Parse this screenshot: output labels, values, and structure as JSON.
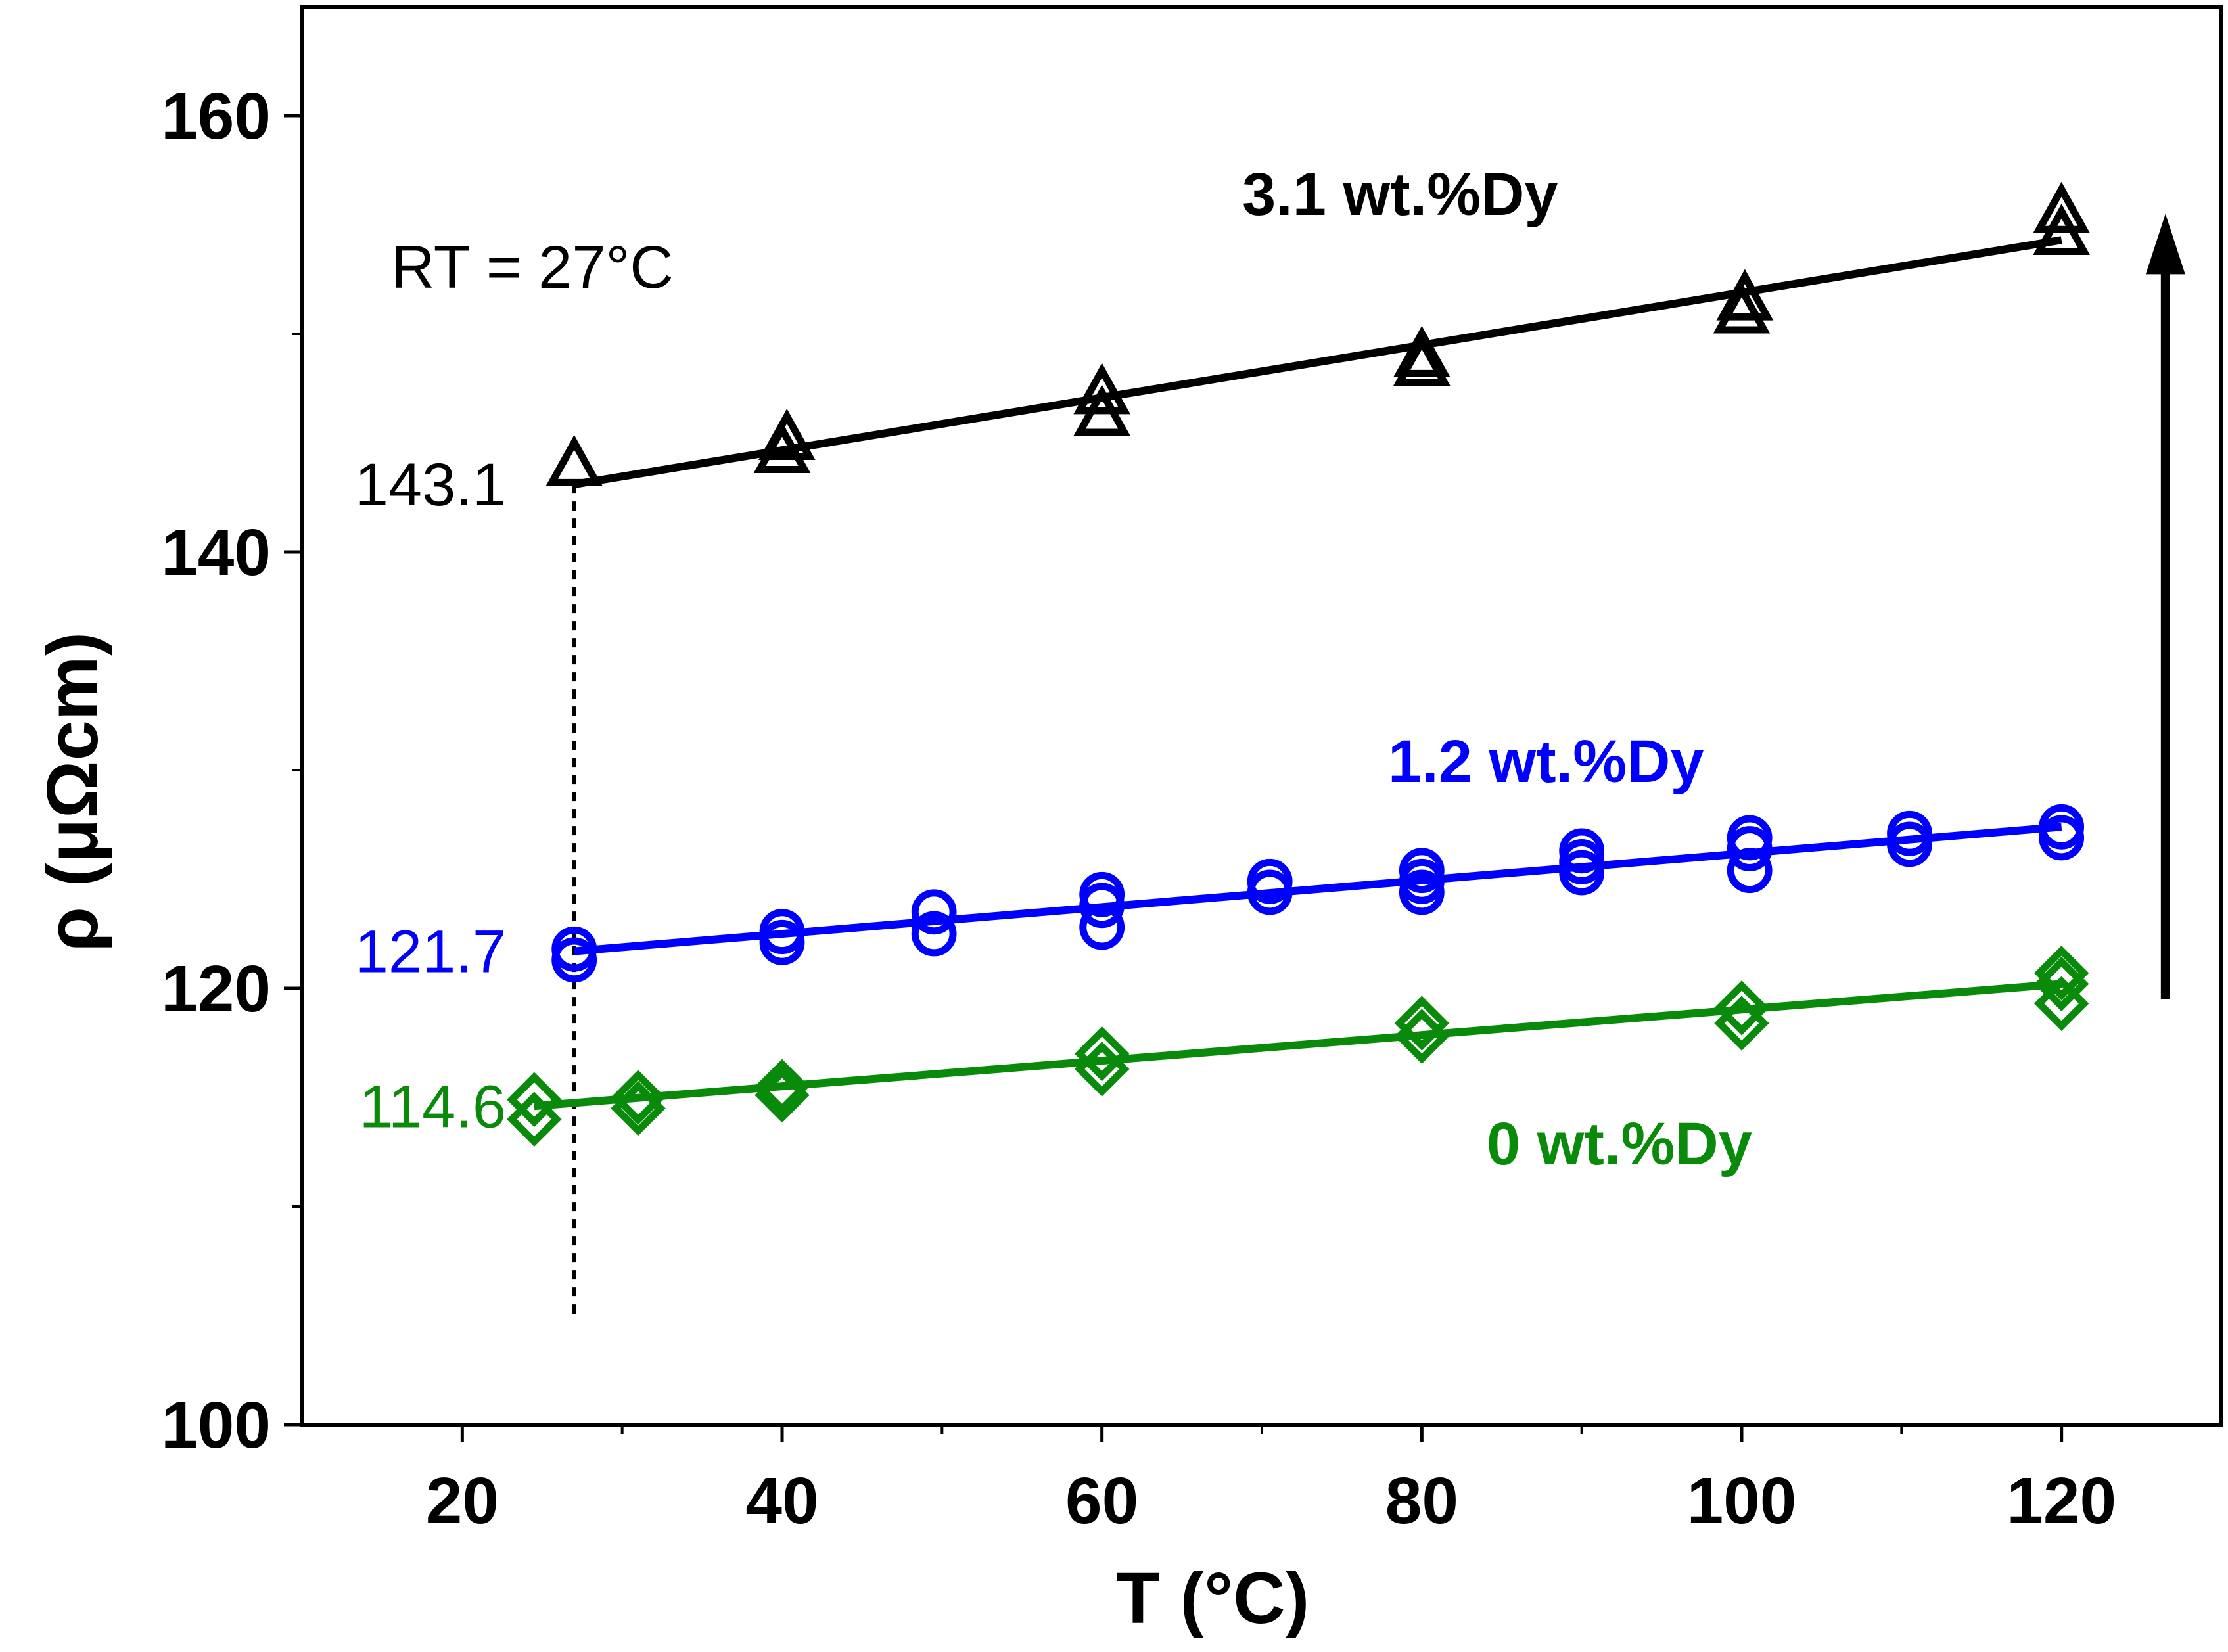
{
  "chart_data": {
    "type": "scatter",
    "xlabel": "T (°C)",
    "ylabel": "ρ (μΩcm)",
    "xlim": [
      10,
      130
    ],
    "ylim": [
      100,
      165
    ],
    "xticks": [
      20,
      40,
      60,
      80,
      100,
      120
    ],
    "xminor": [
      30,
      50,
      70,
      90,
      110
    ],
    "yticks": [
      100,
      120,
      140,
      160
    ],
    "yminor": [
      110,
      130,
      150
    ],
    "grid": false,
    "annotations": {
      "rt_text": "RT = 27°C",
      "rt_x": 27,
      "rt_line_ylim": [
        105,
        143.1
      ],
      "value_labels": [
        {
          "text": "143.1",
          "y": 143.1,
          "color": "#000000"
        },
        {
          "text": "121.7",
          "y": 121.7,
          "color": "#0000ff"
        },
        {
          "text": "114.6",
          "y": 114.6,
          "color": "#0a8a0a"
        }
      ],
      "arrow": {
        "x": 126.5,
        "y_from": 119.5,
        "y_to": 155.5
      }
    },
    "series": [
      {
        "name": "3.1 wt.%Dy",
        "color": "#000000",
        "marker": "triangle",
        "fit": {
          "x": [
            27,
            120
          ],
          "y": [
            143.1,
            154.3
          ]
        },
        "points": [
          {
            "x": 27,
            "y": 144.0
          },
          {
            "x": 40,
            "y": 144.6
          },
          {
            "x": 40.3,
            "y": 145.2
          },
          {
            "x": 60,
            "y": 146.3
          },
          {
            "x": 60,
            "y": 147.3
          },
          {
            "x": 80,
            "y": 148.6
          },
          {
            "x": 80,
            "y": 149.0
          },
          {
            "x": 100,
            "y": 151.0
          },
          {
            "x": 100.2,
            "y": 151.6
          },
          {
            "x": 120,
            "y": 154.6
          },
          {
            "x": 120,
            "y": 155.6
          }
        ]
      },
      {
        "name": "1.2 wt.%Dy",
        "color": "#0000ff",
        "marker": "circle",
        "fit": {
          "x": [
            27,
            120
          ],
          "y": [
            121.7,
            127.4
          ]
        },
        "points": [
          {
            "x": 27,
            "y": 121.3
          },
          {
            "x": 27,
            "y": 121.8
          },
          {
            "x": 40,
            "y": 122.1
          },
          {
            "x": 40,
            "y": 122.6
          },
          {
            "x": 49.5,
            "y": 122.5
          },
          {
            "x": 49.5,
            "y": 123.5
          },
          {
            "x": 60,
            "y": 122.8
          },
          {
            "x": 60,
            "y": 123.8
          },
          {
            "x": 60,
            "y": 124.3
          },
          {
            "x": 70.5,
            "y": 124.4
          },
          {
            "x": 70.5,
            "y": 124.9
          },
          {
            "x": 80,
            "y": 124.4
          },
          {
            "x": 80,
            "y": 124.9
          },
          {
            "x": 80,
            "y": 125.4
          },
          {
            "x": 90,
            "y": 125.3
          },
          {
            "x": 90,
            "y": 126.3
          },
          {
            "x": 90,
            "y": 125.8
          },
          {
            "x": 100.5,
            "y": 125.4
          },
          {
            "x": 100.5,
            "y": 126.4
          },
          {
            "x": 100.5,
            "y": 126.9
          },
          {
            "x": 110.5,
            "y": 126.6
          },
          {
            "x": 110.5,
            "y": 127.1
          },
          {
            "x": 120,
            "y": 126.9
          },
          {
            "x": 120,
            "y": 127.4
          }
        ]
      },
      {
        "name": "0 wt.%Dy",
        "color": "#0a8a0a",
        "marker": "diamond",
        "fit": {
          "x": [
            24.5,
            120
          ],
          "y": [
            114.6,
            120.2
          ]
        },
        "points": [
          {
            "x": 24.5,
            "y": 114.0
          },
          {
            "x": 24.5,
            "y": 114.9
          },
          {
            "x": 31,
            "y": 114.5
          },
          {
            "x": 31,
            "y": 115.0
          },
          {
            "x": 40,
            "y": 115.1
          },
          {
            "x": 40,
            "y": 115.5
          },
          {
            "x": 60,
            "y": 116.3
          },
          {
            "x": 60,
            "y": 117.0
          },
          {
            "x": 80,
            "y": 117.8
          },
          {
            "x": 80,
            "y": 118.4
          },
          {
            "x": 100,
            "y": 118.4
          },
          {
            "x": 100,
            "y": 119.1
          },
          {
            "x": 120,
            "y": 119.3
          },
          {
            "x": 120,
            "y": 120.2
          },
          {
            "x": 120,
            "y": 120.7
          }
        ]
      }
    ]
  }
}
